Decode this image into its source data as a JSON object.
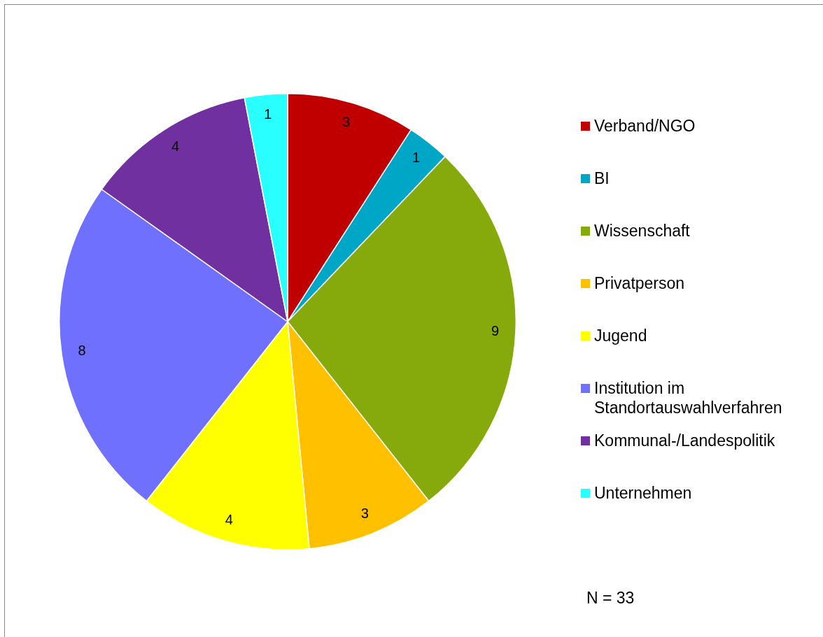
{
  "chart_data": {
    "type": "pie",
    "categories": [
      "Verband/NGO",
      "BI",
      "Wissenschaft",
      "Privatperson",
      "Jugend",
      "Institution im Standortauswahlverfahren",
      "Kommunal-/Landespolitik",
      "Unternehmen"
    ],
    "values": [
      3,
      1,
      9,
      3,
      4,
      8,
      4,
      1
    ],
    "colors": [
      "#c00000",
      "#00a6c6",
      "#86a90c",
      "#ffc000",
      "#ffff00",
      "#7070ff",
      "#7030a0",
      "#29ffff"
    ],
    "data_labels": true,
    "legend": "right",
    "annotations": [
      "N = 33"
    ]
  }
}
